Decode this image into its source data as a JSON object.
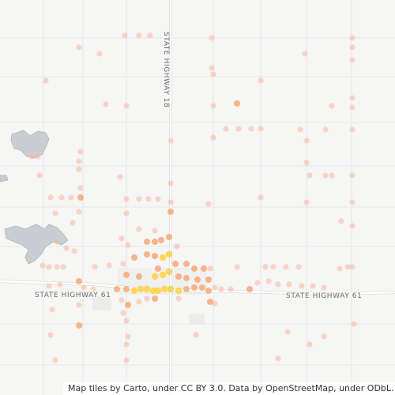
{
  "map": {
    "road_labels": {
      "highway_18": "STATE HIGHWAY 18",
      "highway_61_west": "STATE HIGHWAY 61",
      "highway_61_east": "STATE HIGHWAY 61"
    },
    "attribution": "Map tiles by Carto, under CC BY 3.0. Data by OpenStreetMap, under ODbL.",
    "colors": {
      "background": "#f6f6f5",
      "road": "#ffffff",
      "road_casing": "#dcdcdc",
      "water": "#c9ced3",
      "water_outline": "#aeb4ba",
      "point_light": "#f6b8a0",
      "point_mid": "#f7a36e",
      "point_hot": "#fbd34a"
    }
  }
}
